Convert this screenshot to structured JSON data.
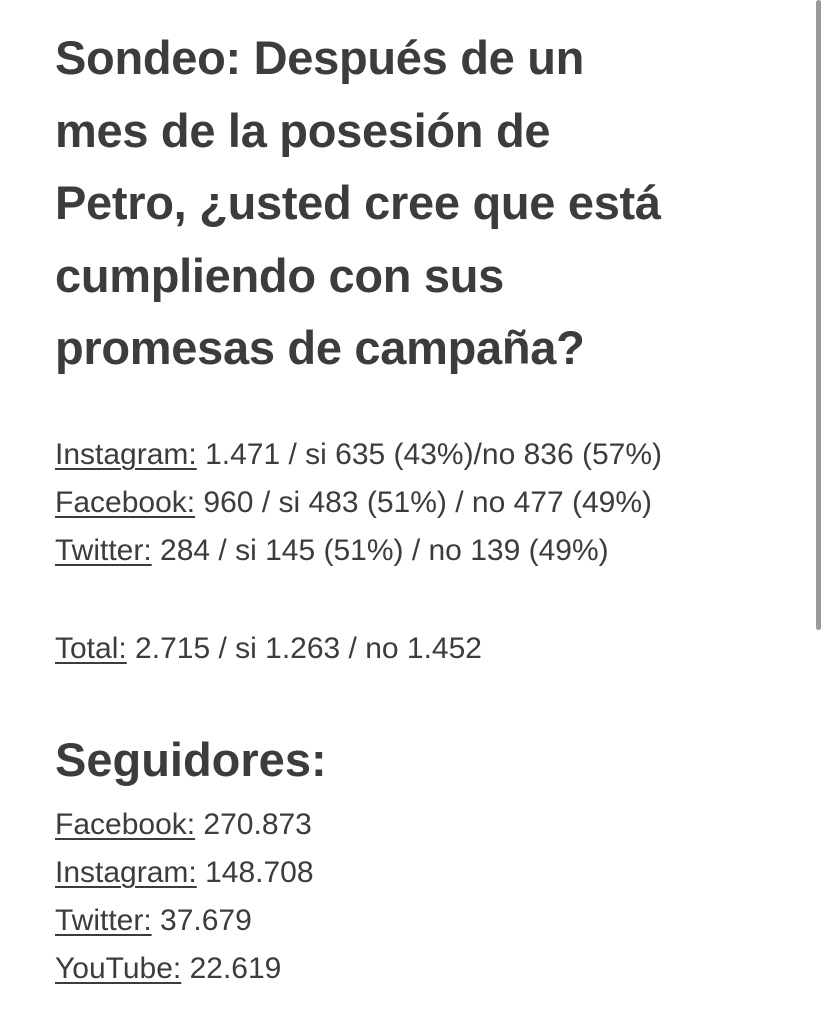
{
  "title_lines": [
    "Sondeo: Después de un",
    "mes de la posesión de",
    "Petro, ¿usted cree que está",
    "cumpliendo con sus",
    "promesas de campaña?"
  ],
  "poll": [
    {
      "label": "Instagram:",
      "text": " 1.471 / si 635 (43%)/no 836 (57%)"
    },
    {
      "label": "Facebook:",
      "text": " 960 / si 483 (51%) / no 477 (49%)"
    },
    {
      "label": "Twitter:",
      "text": " 284 / si 145 (51%) / no 139 (49%)"
    }
  ],
  "total": {
    "label": "Total:",
    "text": " 2.715 / si 1.263 / no 1.452"
  },
  "followers_heading": "Seguidores:",
  "followers": [
    {
      "label": "Facebook:",
      "text": " 270.873"
    },
    {
      "label": "Instagram:",
      "text": " 148.708"
    },
    {
      "label": "Twitter:",
      "text": " 37.679"
    },
    {
      "label": "YouTube:",
      "text": " 22.619"
    }
  ]
}
